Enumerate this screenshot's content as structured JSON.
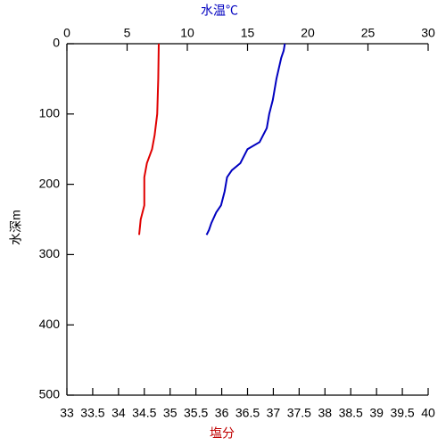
{
  "chart_data": {
    "type": "line",
    "x2label": "水温℃",
    "xlabel": "塩分",
    "ylabel": "水深m",
    "x2lim": [
      0,
      30
    ],
    "x2ticks": [
      0,
      5,
      10,
      15,
      20,
      25,
      30
    ],
    "xlim": [
      33,
      40
    ],
    "xticks": [
      33,
      33.5,
      34,
      34.5,
      35,
      35.5,
      36,
      36.5,
      37,
      37.5,
      38,
      38.5,
      39,
      39.5,
      40
    ],
    "ylim": [
      0,
      500
    ],
    "yticks": [
      0,
      100,
      200,
      300,
      400,
      500
    ],
    "y_inverted": true,
    "series": [
      {
        "color": "#0000c0",
        "axis": "x2",
        "x": [
          18.1,
          18.0,
          17.8,
          17.4,
          17.1,
          16.8,
          16.6,
          16.0,
          15.0,
          14.4,
          13.7,
          13.3,
          13.1,
          12.8,
          12.4,
          12.0,
          11.8,
          11.6
        ],
        "y": [
          0,
          10,
          20,
          50,
          80,
          100,
          120,
          140,
          150,
          170,
          180,
          190,
          210,
          230,
          240,
          255,
          265,
          272
        ]
      },
      {
        "color": "#e00000",
        "x": [
          34.78,
          34.77,
          34.75,
          34.7,
          34.65,
          34.55,
          34.5,
          34.5,
          34.43,
          34.4
        ],
        "y": [
          0,
          50,
          100,
          130,
          150,
          170,
          190,
          230,
          250,
          272
        ]
      }
    ]
  }
}
